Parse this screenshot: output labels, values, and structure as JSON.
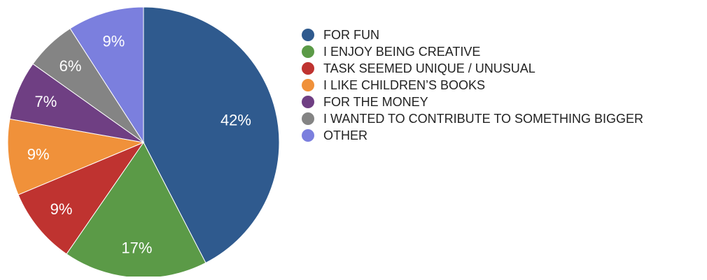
{
  "chart_data": {
    "type": "pie",
    "title": "",
    "series": [
      {
        "values": [
          42,
          17,
          9,
          9,
          7,
          6,
          9
        ],
        "labels": [
          "42%",
          "17%",
          "9%",
          "9%",
          "7%",
          "6%",
          "9%"
        ]
      }
    ],
    "categories": [
      "FOR FUN",
      "I ENJOY BEING CREATIVE",
      "TASK SEEMED UNIQUE / UNUSUAL",
      "I LIKE CHILDREN’S BOOKS",
      "FOR THE MONEY",
      "I WANTED TO CONTRIBUTE TO SOMETHING BIGGER",
      "OTHER"
    ],
    "colors": [
      "#2f5a8e",
      "#5b9a47",
      "#bf3330",
      "#f0913a",
      "#6f3f83",
      "#848484",
      "#7b7fde"
    ],
    "legend_position": "right"
  }
}
